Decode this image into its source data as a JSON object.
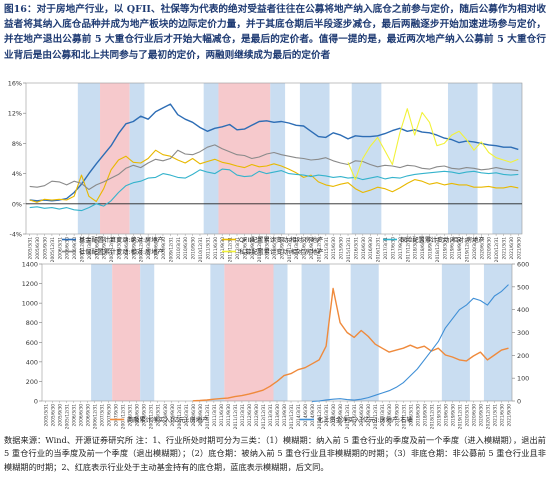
{
  "header": {
    "label": "图16：",
    "text": "对于房地产行业，以 QFII、社保等为代表的绝对受益者往往在公募将地产纳入底仓之前参与定价，随后公募作为相对收益者将其纳入底仓品种并成为地产板块的边际定价力量，并于其底仓期后半段逐步减仓，最后两融逐步开始加速进场参与定价，并在地产退出公募前 5 大重仓行业后才开始大幅减仓，是最后的定价者。值得一提的是，最近两次地产纳入公募前 5 大重仓行业背后是由公募和北上共同参与了最初的定价，两融则继续成为最后的定价者"
  },
  "footer": {
    "text": "数据来源：Wind、开源证券研究所 注：1、行业所处时期可分为三类：（1）模糊期：纳入前 5 重仓行业的季度及前一个季度（进入模糊期），退出前 5 重仓行业的当季度及前一个季度（退出模糊期）；（2）底仓期：被纳入前 5 重仓行业且非模糊期的时期；（3）非底仓期：非公募前 5 重仓行业且非模糊期的时期；2、红底表示行业处于主动基金持有的底仓期，蓝底表示模糊期，后文同。"
  },
  "colors": {
    "fund": "#2d6db5",
    "qfii": "#e8b800",
    "insurance": "#35b3cc",
    "social": "#8a8a8a",
    "private": "#f2f23a",
    "margin": "#ef8a3c",
    "north": "#3f8fd6",
    "red_band": "#f6c9cc",
    "blue_band": "#c9ddf1"
  },
  "chart_data": [
    {
      "type": "line",
      "x": [
        "2005/3/31",
        "2005/6/30",
        "2005/9/30",
        "2005/12/31",
        "2006/3/31",
        "2006/6/30",
        "2006/9/30",
        "2006/12/31",
        "2007/3/31",
        "2007/6/30",
        "2007/9/30",
        "2007/12/31",
        "2008/3/31",
        "2008/6/30",
        "2008/9/30",
        "2008/12/31",
        "2009/3/31",
        "2009/6/30",
        "2009/9/30",
        "2009/12/31",
        "2010/3/31",
        "2010/6/30",
        "2010/9/30",
        "2010/12/31",
        "2011/3/31",
        "2011/6/30",
        "2011/9/30",
        "2011/12/31",
        "2012/3/31",
        "2012/6/30",
        "2012/9/30",
        "2012/12/31",
        "2013/3/31",
        "2013/6/30",
        "2013/9/30",
        "2013/12/31",
        "2014/3/31",
        "2014/6/30",
        "2014/9/30",
        "2014/12/31",
        "2015/3/31",
        "2015/6/30",
        "2015/9/30",
        "2015/12/31",
        "2016/3/31",
        "2016/6/30",
        "2016/9/30",
        "2016/12/31",
        "2017/3/31",
        "2017/6/30",
        "2017/9/30",
        "2017/12/31",
        "2018/3/31",
        "2018/6/30",
        "2018/9/30",
        "2018/12/31",
        "2019/3/31",
        "2019/6/30",
        "2019/9/30",
        "2019/12/31",
        "2020/3/31",
        "2020/6/30",
        "2020/9/30",
        "2020/12/31",
        "2021/3/31",
        "2021/6/30",
        "2021/9/30"
      ],
      "yticks": [
        "-4%",
        "0%",
        "4%",
        "8%",
        "12%",
        "16%"
      ],
      "ylim": [
        -4,
        16
      ],
      "series": [
        {
          "name": "基金配置计算变动:绝对:房地产",
          "color_key": "fund",
          "values": [
            0.5,
            0.4,
            0.5,
            0.4,
            0.5,
            0.7,
            1.5,
            2.6,
            4.0,
            5.3,
            6.5,
            7.7,
            9.3,
            10.6,
            10.9,
            11.6,
            11.2,
            12.2,
            12.7,
            13.2,
            11.8,
            11.2,
            10.8,
            10.1,
            9.6,
            10.0,
            10.2,
            10.5,
            9.8,
            9.9,
            10.4,
            10.9,
            11.0,
            10.8,
            10.9,
            10.7,
            10.4,
            10.3,
            9.6,
            8.9,
            8.8,
            9.4,
            9.1,
            8.6,
            9.0,
            8.9,
            8.9,
            9.0,
            9.3,
            9.7,
            10.0,
            9.6,
            9.8,
            9.5,
            9.4,
            9.1,
            8.7,
            8.5,
            8.1,
            8.3,
            8.2,
            8.0,
            7.8,
            7.7,
            7.5,
            7.5,
            7.2
          ]
        },
        {
          "name": "QFII配置累计变动:相对:房地产",
          "color_key": "qfii",
          "values": [
            0.5,
            0.2,
            0.6,
            0.5,
            0.6,
            0.5,
            1.0,
            3.8,
            1.0,
            0.3,
            2.0,
            4.5,
            5.8,
            6.3,
            5.5,
            5.4,
            6.0,
            7.1,
            6.5,
            6.3,
            5.8,
            5.4,
            6.0,
            5.3,
            5.6,
            5.9,
            5.5,
            5.3,
            5.0,
            4.8,
            5.2,
            4.9,
            5.0,
            5.3,
            5.0,
            4.6,
            4.1,
            3.5,
            3.8,
            2.9,
            2.5,
            2.3,
            2.6,
            2.8,
            2.0,
            1.5,
            1.8,
            2.2,
            2.0,
            1.6,
            2.1,
            2.7,
            3.2,
            3.0,
            2.6,
            2.8,
            2.5,
            2.7,
            2.5,
            2.5,
            2.2,
            2.2,
            2.3,
            2.1,
            2.1,
            2.3,
            2.1
          ]
        },
        {
          "name": "保险配置累计变动:相对:房地产",
          "color_key": "insurance",
          "values": [
            -0.5,
            -0.4,
            -0.6,
            -0.5,
            -0.7,
            -0.5,
            -0.8,
            -0.9,
            -0.5,
            0.0,
            -0.3,
            0.4,
            1.5,
            2.4,
            2.8,
            3.0,
            3.4,
            3.5,
            4.0,
            3.8,
            3.5,
            3.4,
            3.9,
            4.5,
            4.2,
            4.0,
            4.6,
            4.5,
            3.8,
            3.6,
            3.7,
            4.3,
            4.0,
            4.2,
            4.4,
            4.0,
            3.9,
            3.8,
            3.6,
            3.8,
            3.7,
            3.5,
            3.6,
            3.4,
            3.5,
            3.2,
            3.4,
            3.6,
            3.3,
            3.5,
            3.4,
            3.7,
            3.9,
            4.0,
            4.1,
            4.2,
            4.3,
            4.2,
            4.0,
            4.2,
            4.3,
            4.1,
            4.0,
            4.1,
            3.9,
            3.8,
            3.9
          ]
        },
        {
          "name": "社保配置累计变动:相对:房地产",
          "color_key": "social",
          "values": [
            2.3,
            2.2,
            2.4,
            3.0,
            2.9,
            2.5,
            3.0,
            2.7,
            1.9,
            2.5,
            2.9,
            3.4,
            3.9,
            4.7,
            5.1,
            4.8,
            5.4,
            5.9,
            5.7,
            6.0,
            7.1,
            6.6,
            6.5,
            6.9,
            7.5,
            7.8,
            7.3,
            6.9,
            6.5,
            6.4,
            6.0,
            6.2,
            6.6,
            6.8,
            6.5,
            6.3,
            6.1,
            6.0,
            5.8,
            5.9,
            6.1,
            5.7,
            5.4,
            5.2,
            5.7,
            5.6,
            5.2,
            4.9,
            5.1,
            5.0,
            4.8,
            5.1,
            5.0,
            4.7,
            4.6,
            4.9,
            5.0,
            4.7,
            4.6,
            4.8,
            4.7,
            4.5,
            4.6,
            4.8,
            4.6,
            4.5,
            4.4
          ]
        },
        {
          "name": "私募配置累计变动:相对:房地产",
          "color_key": "private",
          "values": [
            null,
            null,
            null,
            null,
            null,
            null,
            null,
            null,
            null,
            null,
            null,
            null,
            null,
            null,
            null,
            null,
            null,
            null,
            null,
            null,
            null,
            null,
            null,
            null,
            null,
            null,
            null,
            null,
            null,
            null,
            null,
            null,
            null,
            null,
            null,
            null,
            null,
            null,
            null,
            null,
            null,
            null,
            null,
            5.5,
            3.2,
            6.0,
            7.6,
            8.8,
            7.0,
            5.2,
            9.4,
            12.6,
            9.1,
            12.1,
            10.8,
            7.7,
            8.0,
            9.1,
            9.6,
            8.5,
            7.1,
            8.2,
            6.8,
            6.1,
            5.8,
            5.5,
            5.9
          ]
        }
      ]
    },
    {
      "type": "line",
      "x": [
        "2005/3/31",
        "2005/6/30",
        "2005/9/30",
        "2005/12/31",
        "2006/3/31",
        "2006/6/30",
        "2006/9/30",
        "2006/12/31",
        "2007/3/31",
        "2007/6/30",
        "2007/9/30",
        "2007/12/31",
        "2008/3/31",
        "2008/6/30",
        "2008/9/30",
        "2008/12/31",
        "2009/3/31",
        "2009/6/30",
        "2009/9/30",
        "2009/12/31",
        "2010/3/31",
        "2010/6/30",
        "2010/9/30",
        "2010/12/31",
        "2011/3/31",
        "2011/6/30",
        "2011/9/30",
        "2011/12/31",
        "2012/3/31",
        "2012/6/30",
        "2012/9/30",
        "2012/12/31",
        "2013/3/31",
        "2013/6/30",
        "2013/9/30",
        "2013/12/31",
        "2014/3/31",
        "2014/6/30",
        "2014/9/30",
        "2014/12/31",
        "2015/3/31",
        "2015/6/30",
        "2015/9/30",
        "2015/12/31",
        "2016/3/31",
        "2016/6/30",
        "2016/9/30",
        "2016/12/31",
        "2017/3/31",
        "2017/6/30",
        "2017/9/30",
        "2017/12/31",
        "2018/3/31",
        "2018/6/30",
        "2018/9/30",
        "2018/12/31",
        "2019/3/31",
        "2019/6/30",
        "2019/9/30",
        "2019/12/31",
        "2020/3/31",
        "2020/6/30",
        "2020/9/30",
        "2020/12/31",
        "2021/3/31",
        "2021/6/30",
        "2021/9/30"
      ],
      "yticks_left": [
        "0",
        "200",
        "400",
        "600",
        "800",
        "1000",
        "1200",
        "1400"
      ],
      "ylim_left": [
        0,
        1400
      ],
      "yticks_right": [
        "0",
        "100",
        "200",
        "300",
        "400",
        "500",
        "600"
      ],
      "ylim_right": [
        0,
        600
      ],
      "series": [
        {
          "name": "两融累计净买入(亿元):房地产",
          "axis": "left",
          "color_key": "margin",
          "values": [
            null,
            null,
            null,
            null,
            null,
            null,
            null,
            null,
            null,
            null,
            null,
            null,
            null,
            null,
            null,
            null,
            null,
            null,
            null,
            null,
            null,
            2,
            5,
            10,
            18,
            25,
            30,
            45,
            55,
            70,
            90,
            110,
            150,
            200,
            260,
            280,
            320,
            340,
            380,
            420,
            560,
            1150,
            800,
            700,
            650,
            720,
            660,
            580,
            540,
            500,
            520,
            540,
            570,
            540,
            560,
            510,
            540,
            470,
            450,
            420,
            410,
            460,
            500,
            420,
            470,
            520,
            540
          ]
        },
        {
          "name": "北上资金净买入(亿元):房地产:右轴",
          "axis": "right",
          "color_key": "north",
          "values": [
            null,
            null,
            null,
            null,
            null,
            null,
            null,
            null,
            null,
            null,
            null,
            null,
            null,
            null,
            null,
            null,
            null,
            null,
            null,
            null,
            null,
            null,
            null,
            null,
            null,
            null,
            null,
            null,
            null,
            null,
            null,
            null,
            null,
            null,
            null,
            null,
            null,
            null,
            -2,
            0,
            5,
            8,
            10,
            6,
            4,
            8,
            15,
            25,
            35,
            45,
            60,
            80,
            110,
            140,
            180,
            220,
            260,
            320,
            360,
            400,
            420,
            450,
            440,
            420,
            460,
            480,
            510
          ]
        }
      ]
    }
  ]
}
